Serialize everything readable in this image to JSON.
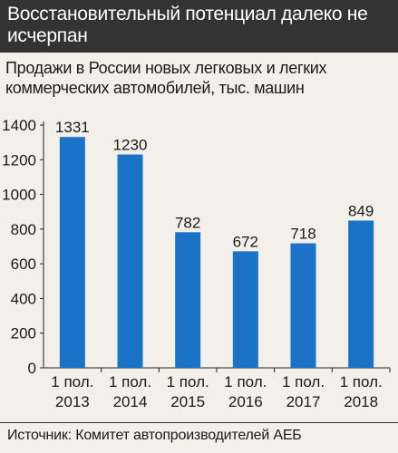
{
  "header": {
    "title": "Восстановительный потенциал далеко не исчерпан"
  },
  "subtitle": "Продажи в России новых легковых и легких коммерческих автомобилей, тыс. машин",
  "source": "Источник: Комитет автопроизводителей АЕБ",
  "colors": {
    "bar": "#1a73c6",
    "header_bg": "#333333",
    "background": "#f2f0e8"
  },
  "chart_data": {
    "type": "bar",
    "categories": [
      [
        "1 пол.",
        "2013"
      ],
      [
        "1 пол.",
        "2014"
      ],
      [
        "1 пол.",
        "2015"
      ],
      [
        "1 пол.",
        "2016"
      ],
      [
        "1 пол.",
        "2017"
      ],
      [
        "1 пол.",
        "2018"
      ]
    ],
    "values": [
      1331,
      1230,
      782,
      672,
      718,
      849
    ],
    "data_labels": [
      "1331",
      "1230",
      "782",
      "672",
      "718",
      "849"
    ],
    "yticks": [
      0,
      200,
      400,
      600,
      800,
      1000,
      1200,
      1400
    ],
    "ylim": [
      0,
      1400
    ],
    "grid": false,
    "legend": "none"
  }
}
